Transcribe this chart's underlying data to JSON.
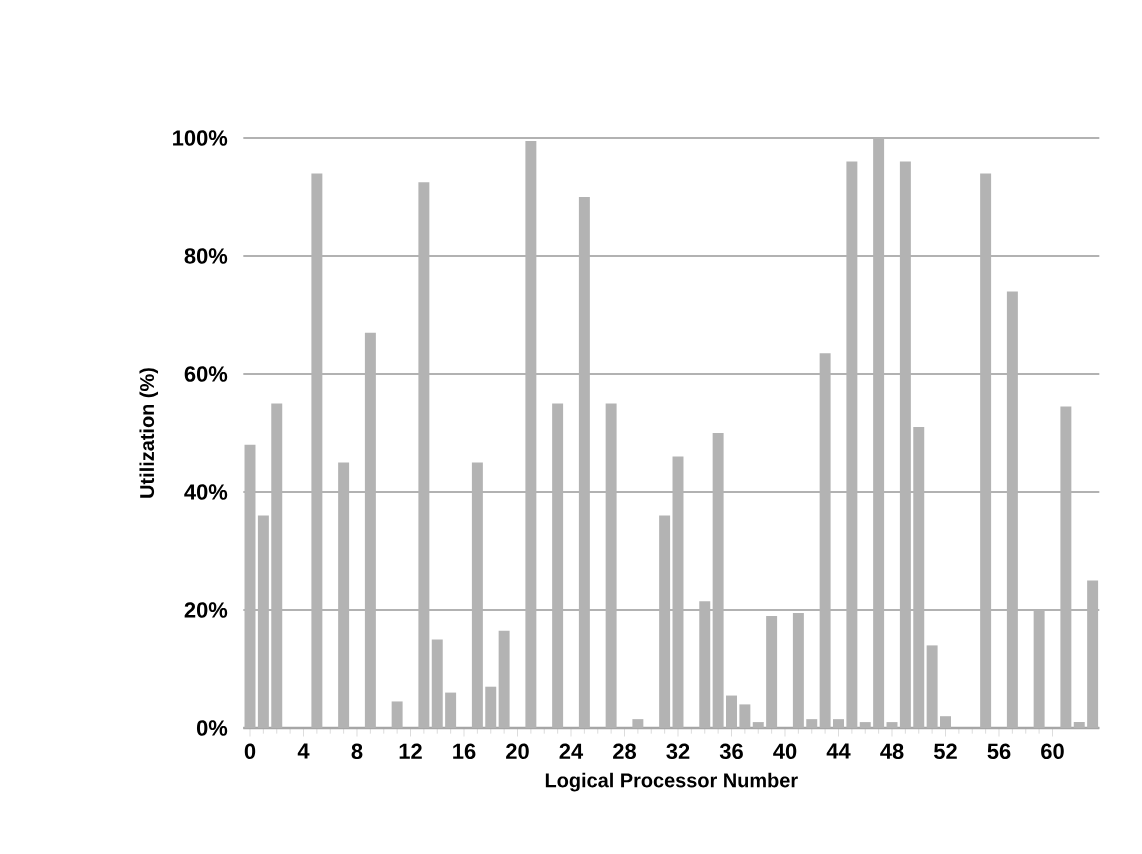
{
  "chart_data": {
    "type": "bar",
    "xlabel": "Logical Processor Number",
    "ylabel": "Utilization (%)",
    "x": [
      0,
      1,
      2,
      3,
      4,
      5,
      6,
      7,
      8,
      9,
      10,
      11,
      12,
      13,
      14,
      15,
      16,
      17,
      18,
      19,
      20,
      21,
      22,
      23,
      24,
      25,
      26,
      27,
      28,
      29,
      30,
      31,
      32,
      33,
      34,
      35,
      36,
      37,
      38,
      39,
      40,
      41,
      42,
      43,
      44,
      45,
      46,
      47,
      48,
      49,
      50,
      51,
      52,
      53,
      54,
      55,
      56,
      57,
      58,
      59,
      60,
      61,
      62,
      63
    ],
    "values": [
      48,
      36,
      55,
      0,
      0,
      94,
      0,
      45,
      0,
      67,
      0,
      4.5,
      0,
      92.5,
      15,
      6,
      0,
      45,
      7,
      16.5,
      0,
      99.5,
      0,
      55,
      0,
      90,
      0,
      55,
      0,
      1.5,
      0,
      36,
      46,
      0,
      21.5,
      50,
      5.5,
      4,
      1,
      19,
      0,
      19.5,
      1.5,
      63.5,
      1.5,
      96,
      1,
      100,
      1,
      96,
      51,
      14,
      2,
      null,
      null,
      94,
      null,
      74,
      null,
      20,
      null,
      54.5,
      1,
      25
    ],
    "color": "#b3b3b3",
    "xlim": [
      -0.5,
      63.5
    ],
    "xticks": [
      0,
      4,
      8,
      12,
      16,
      20,
      24,
      28,
      32,
      36,
      40,
      44,
      48,
      52,
      56,
      60
    ],
    "ylim": [
      0,
      100
    ],
    "yticks": [
      {
        "value": 0,
        "label": "0%"
      },
      {
        "value": 20,
        "label": "20%"
      },
      {
        "value": 40,
        "label": "40%"
      },
      {
        "value": 60,
        "label": "60%"
      },
      {
        "value": 80,
        "label": "80%"
      },
      {
        "value": 100,
        "label": "100%"
      }
    ],
    "grid": "y"
  }
}
